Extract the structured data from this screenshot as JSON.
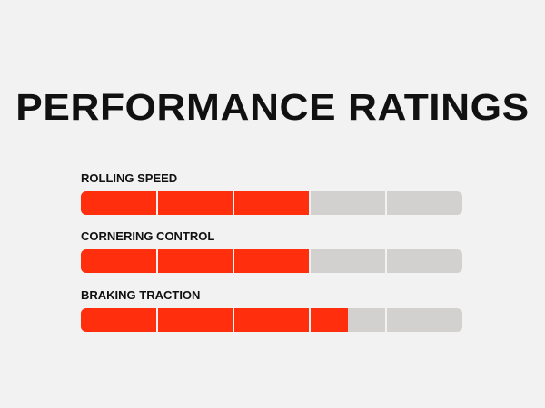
{
  "title": "PERFORMANCE RATINGS",
  "colors": {
    "background": "#f2f2f2",
    "fill": "#ff2e0c",
    "track": "#d3d0d0",
    "text": "#111111"
  },
  "segments_per_bar": 5,
  "ratings": [
    {
      "label": "ROLLING SPEED",
      "value": 3.0
    },
    {
      "label": "CORNERING CONTROL",
      "value": 3.0
    },
    {
      "label": "BRAKING TRACTION",
      "value": 3.5
    }
  ]
}
